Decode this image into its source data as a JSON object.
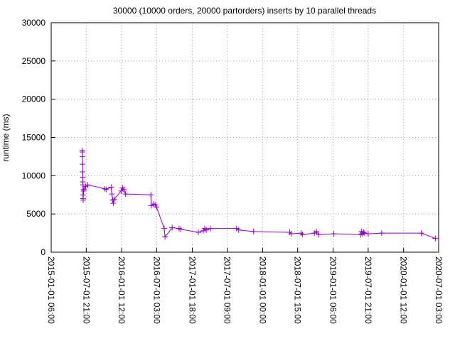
{
  "chart_data": {
    "type": "line",
    "title": "30000 (10000 orders, 20000 partorders) inserts by 10 parallel threads",
    "y_label": "runtime (ms)",
    "x": [
      "2015-06-11 00:00",
      "2015-06-12 00:00",
      "2015-06-12 00:00",
      "2015-06-13 00:00",
      "2015-06-13 00:00",
      "2015-06-14 00:00",
      "2015-06-14 00:00",
      "2015-06-15 00:00",
      "2015-06-15 00:00",
      "2015-06-16 00:00",
      "2015-06-16 00:00",
      "2015-06-18 00:00",
      "2015-06-20 00:00",
      "2015-06-29 00:00",
      "2015-07-10 00:00",
      "2015-10-06 00:00",
      "2015-10-13 00:00",
      "2015-11-08 00:00",
      "2015-11-12 00:00",
      "2015-11-16 00:00",
      "2015-11-19 00:00",
      "2015-11-23 00:00",
      "2015-12-30 00:00",
      "2016-01-06 00:00",
      "2016-01-13 00:00",
      "2016-01-21 00:00",
      "2016-06-01 00:00",
      "2016-06-02 00:00",
      "2016-06-15 00:00",
      "2016-06-23 00:00",
      "2016-06-30 00:00",
      "2016-08-09 00:00",
      "2016-08-13 00:00",
      "2016-09-19 00:00",
      "2016-10-25 00:00",
      "2016-11-02 00:00",
      "2017-02-02 00:00",
      "2017-02-28 00:00",
      "2017-03-07 00:00",
      "2017-03-15 00:00",
      "2017-04-06 00:00",
      "2017-08-19 00:00",
      "2017-08-30 00:00",
      "2017-11-15 00:00",
      "2018-05-21 00:00",
      "2018-05-29 00:00",
      "2018-07-19 00:00",
      "2018-07-26 00:00",
      "2018-09-26 00:00",
      "2018-10-07 00:00",
      "2018-10-18 00:00",
      "2019-01-05 00:00",
      "2019-05-24 00:00",
      "2019-05-28 00:00",
      "2019-05-31 00:00",
      "2019-06-08 00:00",
      "2019-06-11 00:00",
      "2019-07-02 00:00",
      "2019-09-10 00:00",
      "2020-04-02 00:00",
      "2020-06-14 00:00"
    ],
    "series": [
      {
        "color": "#9400d3",
        "values": [
          13300,
          13100,
          12500,
          11500,
          10500,
          9800,
          9200,
          8800,
          7500,
          7000,
          6800,
          8000,
          8200,
          8600,
          8800,
          8300,
          8200,
          8500,
          7600,
          6800,
          6400,
          6900,
          8000,
          8400,
          8200,
          7600,
          7500,
          6100,
          6300,
          6200,
          5900,
          3100,
          2000,
          3200,
          3100,
          3000,
          2600,
          2800,
          3100,
          2900,
          3100,
          3100,
          2900,
          2700,
          2600,
          2400,
          2500,
          2300,
          2500,
          2700,
          2300,
          2400,
          2300,
          2700,
          2400,
          2600,
          2500,
          2400,
          2500,
          2500,
          1800
        ]
      }
    ],
    "xlim": [
      "2015-01-01 06:00",
      "2020-07-01 03:00"
    ],
    "xticks": [
      "2015-01-01 06:00",
      "2015-07-01 21:00",
      "2016-01-01 12:00",
      "2016-07-01 03:00",
      "2017-01-01 18:00",
      "2017-07-01 09:00",
      "2018-01-01 00:00",
      "2018-07-01 15:00",
      "2019-01-01 06:00",
      "2019-07-01 21:00",
      "2020-01-01 12:00",
      "2020-07-01 03:00"
    ],
    "ylim": [
      0,
      30000
    ],
    "yticks": [
      0,
      5000,
      10000,
      15000,
      20000,
      25000,
      30000
    ],
    "grid": true
  }
}
